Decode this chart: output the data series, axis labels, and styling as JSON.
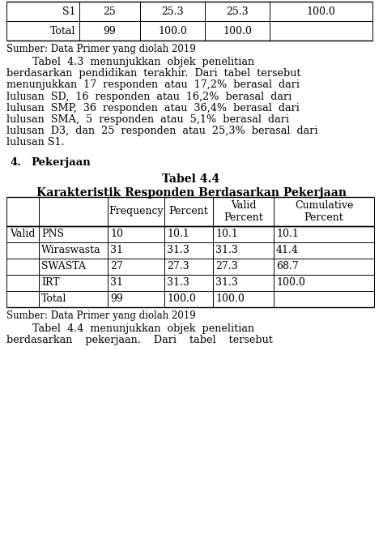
{
  "top_table_rows": [
    [
      "S1",
      "25",
      "25.3",
      "25.3",
      "100.0"
    ],
    [
      "Total",
      "99",
      "100.0",
      "100.0",
      ""
    ]
  ],
  "source1": "Sumber: Data Primer yang diolah 2019",
  "para_lines": [
    "        Tabel  4.3  menunjukkan  objek  penelitian",
    "berdasarkan  pendidikan  terakhir.  Dari  tabel  tersebut",
    "menunjukkan  17  responden  atau  17,2%  berasal  dari",
    "lulusan  SD,  16  responden  atau  16,2%  berasal  dari",
    "lulusan  SMP,  36  responden  atau  36,4%  berasal  dari",
    "lulusan  SMA,  5  responden  atau  5,1%  berasal  dari",
    "lulusan  D3,  dan  25  responden  atau  25,3%  berasal  dari",
    "lulusan S1."
  ],
  "section_num": "4.",
  "section_title": "Pekerjaan",
  "tabel_title": "Tabel 4.4",
  "tabel_subtitle": "Karakteristik Responden Berdasarkan Pekerjaan",
  "main_headers": [
    "",
    "Frequency",
    "Percent",
    "Valid\nPercent",
    "Cumulative\nPercent"
  ],
  "main_col1_label": "Valid",
  "main_rows": [
    [
      "PNS",
      "10",
      "10.1",
      "10.1",
      "10.1"
    ],
    [
      "Wiraswasta",
      "31",
      "31.3",
      "31.3",
      "41.4"
    ],
    [
      "SWASTA",
      "27",
      "27.3",
      "27.3",
      "68.7"
    ],
    [
      "IRT",
      "31",
      "31.3",
      "31.3",
      "100.0"
    ],
    [
      "Total",
      "99",
      "100.0",
      "100.0",
      ""
    ]
  ],
  "source2": "Sumber: Data Primer yang diolah 2019",
  "para2_lines": [
    "        Tabel  4.4  menunjukkan  objek  penelitian",
    "berdasarkan    pekerjaan.    Dari    tabel    tersebut"
  ],
  "bg_color": "#ffffff",
  "text_color": "#000000"
}
